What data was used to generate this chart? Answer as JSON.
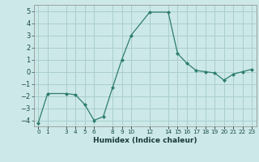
{
  "x": [
    0,
    1,
    3,
    4,
    5,
    6,
    7,
    8,
    9,
    10,
    12,
    14,
    15,
    16,
    17,
    18,
    19,
    20,
    21,
    22,
    23
  ],
  "y": [
    -4.2,
    -1.8,
    -1.8,
    -1.9,
    -2.7,
    -4.0,
    -3.7,
    -1.3,
    1.0,
    3.0,
    4.9,
    4.9,
    1.5,
    0.7,
    0.1,
    0.0,
    -0.1,
    -0.7,
    -0.2,
    0.0,
    0.2
  ],
  "line_color": "#2e7d6e",
  "marker_color": "#2e7d6e",
  "bg_color": "#cce8e8",
  "grid_color": "#aacece",
  "xlabel": "Humidex (Indice chaleur)",
  "xlim": [
    -0.5,
    23.5
  ],
  "ylim": [
    -4.5,
    5.5
  ],
  "yticks": [
    -4,
    -3,
    -2,
    -1,
    0,
    1,
    2,
    3,
    4,
    5
  ],
  "xticks": [
    0,
    1,
    3,
    4,
    5,
    6,
    8,
    9,
    10,
    12,
    14,
    15,
    16,
    17,
    18,
    19,
    20,
    21,
    22,
    23
  ],
  "xtick_labels": [
    "0",
    "1",
    "3",
    "4",
    "5",
    "6",
    "8",
    "9",
    "10",
    "12",
    "14",
    "15",
    "16",
    "17",
    "18",
    "19",
    "20",
    "21",
    "22",
    "23"
  ],
  "xlabel_fontsize": 6.5,
  "ytick_fontsize": 6.0,
  "xtick_fontsize": 5.2
}
